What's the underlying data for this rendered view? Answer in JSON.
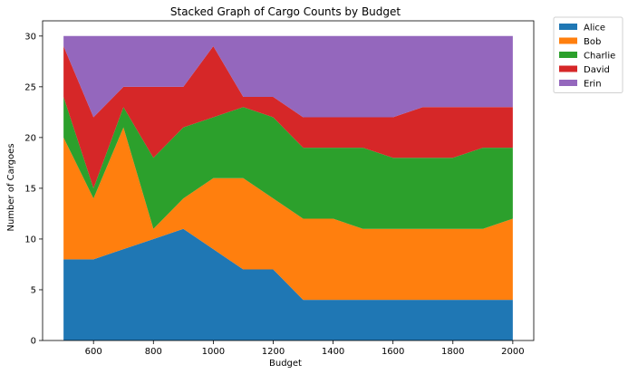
{
  "chart_data": {
    "type": "area",
    "stacked": true,
    "title": "Stacked Graph of Cargo Counts by Budget",
    "xlabel": "Budget",
    "ylabel": "Number of Cargoes",
    "x": [
      500,
      600,
      700,
      800,
      900,
      1000,
      1100,
      1200,
      1300,
      1400,
      1500,
      1600,
      1700,
      1800,
      1900,
      2000
    ],
    "xlim": [
      430,
      2070
    ],
    "ylim": [
      0,
      31.5
    ],
    "xticks": [
      600,
      800,
      1000,
      1200,
      1400,
      1600,
      1800,
      2000
    ],
    "yticks": [
      0,
      5,
      10,
      15,
      20,
      25,
      30
    ],
    "grid": false,
    "legend_position": "outside-top-right",
    "series": [
      {
        "name": "Alice",
        "color": "#1f77b4",
        "values": [
          8,
          8,
          9,
          10,
          11,
          9,
          7,
          7,
          4,
          4,
          4,
          4,
          4,
          4,
          4,
          4
        ]
      },
      {
        "name": "Bob",
        "color": "#ff7f0e",
        "values": [
          12,
          6,
          12,
          1,
          3,
          7,
          9,
          7,
          8,
          8,
          7,
          7,
          7,
          7,
          7,
          8
        ]
      },
      {
        "name": "Charlie",
        "color": "#2ca02c",
        "values": [
          4,
          1,
          2,
          7,
          7,
          6,
          7,
          8,
          7,
          7,
          8,
          7,
          7,
          7,
          8,
          7
        ]
      },
      {
        "name": "David",
        "color": "#d62728",
        "values": [
          5,
          7,
          2,
          7,
          4,
          7,
          1,
          2,
          3,
          3,
          3,
          4,
          5,
          5,
          4,
          4
        ]
      },
      {
        "name": "Erin",
        "color": "#9467bd",
        "values": [
          1,
          8,
          5,
          5,
          5,
          1,
          6,
          6,
          8,
          8,
          8,
          8,
          7,
          7,
          7,
          7
        ]
      }
    ]
  }
}
